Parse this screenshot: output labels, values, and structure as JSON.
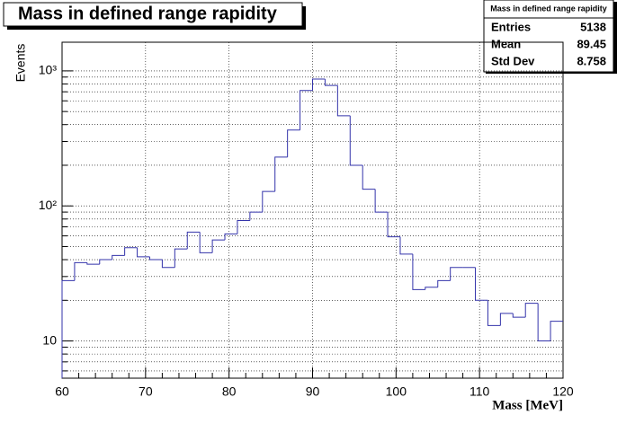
{
  "chart_data": {
    "type": "histogram",
    "title": "Mass in defined range rapidity",
    "x_label": "Mass [MeV]",
    "y_label": "Events",
    "bins": [
      60,
      61.5,
      63,
      64.5,
      66,
      67.5,
      69,
      70.5,
      72,
      73.5,
      75,
      76.5,
      78,
      79.5,
      81,
      82.5,
      84,
      85.5,
      87,
      88.5,
      90,
      91.5,
      93,
      94.5,
      96,
      97.5,
      99,
      100.5,
      102,
      103.5,
      105,
      106.5,
      108,
      109.5,
      111,
      112.5,
      114,
      115.5,
      117,
      118.5,
      120
    ],
    "values": [
      28,
      38,
      37,
      40,
      43,
      49,
      42,
      40,
      35,
      48,
      64,
      45,
      56,
      62,
      78,
      90,
      128,
      230,
      365,
      715,
      870,
      780,
      465,
      200,
      133,
      90,
      59,
      44,
      24,
      25,
      28,
      35,
      35,
      20,
      13,
      16,
      15,
      19,
      10,
      14
    ],
    "color": "#3333aa",
    "xlim": [
      60,
      120
    ],
    "xticks": [
      60,
      70,
      80,
      90,
      100,
      110,
      120
    ],
    "ylim": [
      5.3,
      1630
    ],
    "yticks": [
      10,
      {
        "value": 100,
        "label": "10²"
      },
      {
        "value": 1000,
        "label": "10³"
      }
    ],
    "log_y": true,
    "grid": true,
    "stats": {
      "title": "Mass in defined range rapidity",
      "rows": [
        {
          "label": "Entries",
          "value": 5138
        },
        {
          "label": "Mean",
          "value": 89.45
        },
        {
          "label": "Std Dev",
          "value": 8.758
        }
      ]
    }
  }
}
